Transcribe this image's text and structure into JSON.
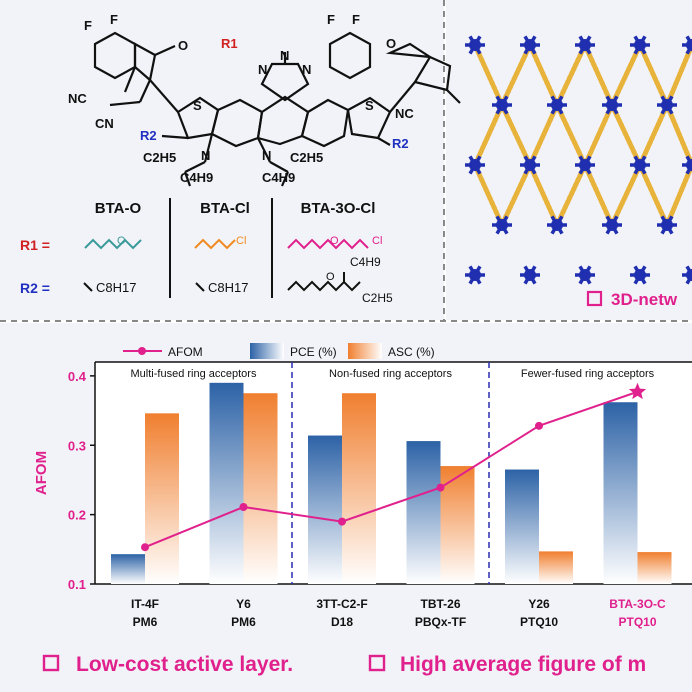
{
  "structure": {
    "r1_label": "R1",
    "n_atom": "N",
    "s_atom": "S",
    "f_atom": "F",
    "o_atom": "O",
    "cn_group": "CN",
    "nc_group": "NC",
    "r2_label": "R2",
    "c2h5": "C2H5",
    "c4h9": "C4H9"
  },
  "table": {
    "headers": [
      "BTA-O",
      "BTA-Cl",
      "BTA-3O-Cl"
    ],
    "row_r1_label": "R1 =",
    "row_r2_label": "R2 =",
    "r1_labels": [
      "O",
      "Cl",
      "O",
      "Cl"
    ],
    "r2_groups": [
      "C8H17",
      "C8H17"
    ],
    "r2_branch": [
      "O",
      "C4H9",
      "C2H5"
    ]
  },
  "network": {
    "caption": "3D-netw",
    "colors": {
      "node": "#1f2fb0",
      "linker": "#e8b33a"
    }
  },
  "chart_data": {
    "type": "bar",
    "legend": [
      "AFOM",
      "PCE (%)",
      "ASC (%)"
    ],
    "ylabel": "AFOM",
    "ylim": [
      0.1,
      0.42
    ],
    "yticks": [
      "0.1",
      "0.2",
      "0.3",
      "0.4"
    ],
    "groups": [
      "Multi-fused ring acceptors",
      "Non-fused ring acceptors",
      "Fewer-fused ring acceptors"
    ],
    "categories": [
      {
        "acceptor": "IT-4F",
        "donor": "PM6"
      },
      {
        "acceptor": "Y6",
        "donor": "PM6"
      },
      {
        "acceptor": "3TT-C2-F",
        "donor": "D18"
      },
      {
        "acceptor": "TBT-26",
        "donor": "PBQx-TF"
      },
      {
        "acceptor": "Y26",
        "donor": "PTQ10"
      },
      {
        "acceptor": "BTA-3O-C",
        "donor": "PTQ10"
      }
    ],
    "series": [
      {
        "name": "PCE (%)",
        "values": [
          0.143,
          0.39,
          0.314,
          0.306,
          0.265,
          0.362
        ]
      },
      {
        "name": "ASC (%)",
        "values": [
          0.346,
          0.375,
          0.375,
          0.27,
          0.147,
          0.146
        ]
      },
      {
        "name": "AFOM",
        "values": [
          0.153,
          0.211,
          0.19,
          0.239,
          0.328,
          0.377
        ]
      }
    ],
    "colors": {
      "pce": "#2c62a6",
      "asc": "#f07f2f",
      "afom": "#e0208c",
      "highlight": "#e0208c"
    }
  },
  "footer": {
    "item1": "Low-cost active layer.",
    "item2": "High average figure of m"
  }
}
